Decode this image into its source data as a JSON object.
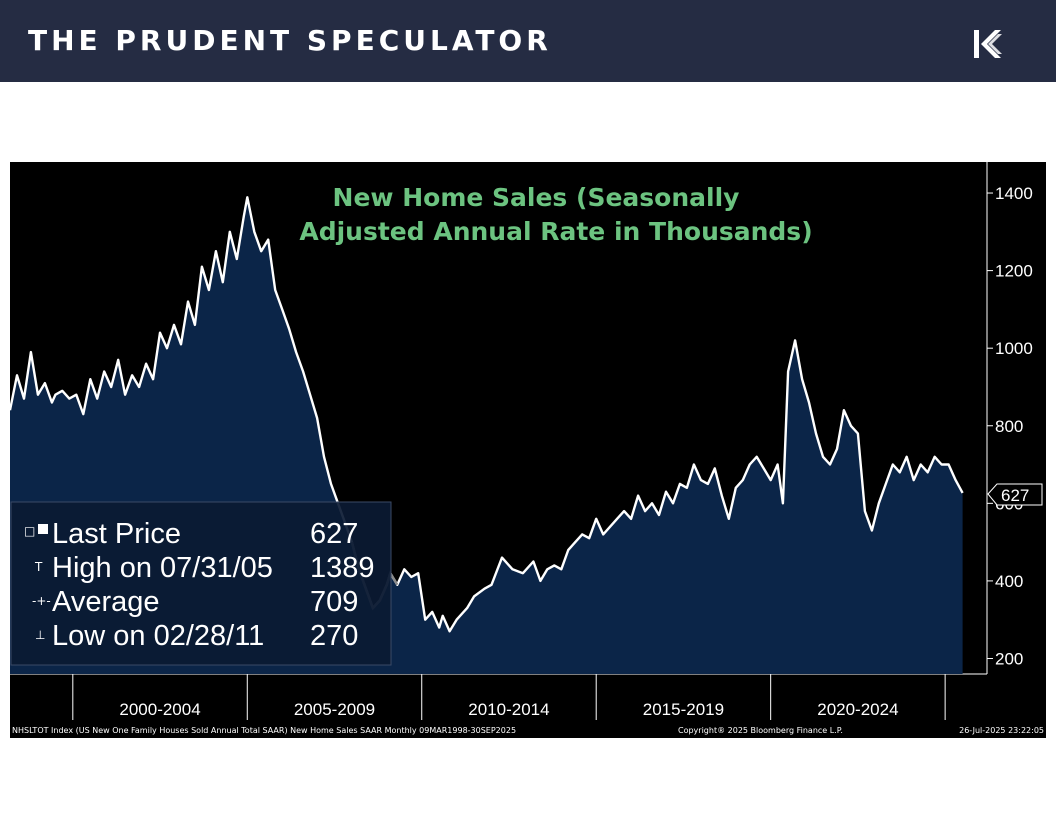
{
  "header": {
    "brand": "THE PRUDENT SPECULATOR",
    "logo_icon": "tps-k-logo-icon"
  },
  "colors": {
    "header_bg": "#252c43",
    "chart_bg": "#000000",
    "area_fill": "#0b2548",
    "line": "#ffffff",
    "line_low_segment": "#8a8a8a",
    "title": "#6cc380"
  },
  "chart_data": {
    "type": "area",
    "title_lines": [
      "New Home Sales (Seasonally",
      "Adjusted Annual Rate in Thousands)"
    ],
    "xlabel": "",
    "ylabel": "",
    "ylim": [
      160,
      1480
    ],
    "y_ticks": [
      200,
      400,
      600,
      800,
      1000,
      1200,
      1400
    ],
    "x_range": [
      1998.2,
      2026.2
    ],
    "x_period_labels": [
      "2000-2004",
      "2005-2009",
      "2010-2014",
      "2015-2019",
      "2020-2024"
    ],
    "x_boundaries": [
      2000,
      2005,
      2010,
      2015,
      2020,
      2025
    ],
    "last_value_label": "627",
    "legend": [
      {
        "label": "Last Price",
        "value": "627"
      },
      {
        "label": "High on 07/31/05",
        "value": "1389"
      },
      {
        "label": "Average",
        "value": "709"
      },
      {
        "label": "Low on 02/28/11",
        "value": "270"
      }
    ],
    "legend_placement": "bottom-left",
    "grid": false,
    "series": [
      {
        "x": [
          1998.2,
          1998.4,
          1998.6,
          1998.8,
          1999.0,
          1999.2,
          1999.4,
          1999.5,
          1999.7,
          1999.9,
          2000.1,
          2000.3,
          2000.5,
          2000.7,
          2000.9,
          2001.1,
          2001.3,
          2001.5,
          2001.7,
          2001.9,
          2002.1,
          2002.3,
          2002.5,
          2002.7,
          2002.9,
          2003.1,
          2003.3,
          2003.5,
          2003.7,
          2003.9,
          2004.1,
          2004.3,
          2004.5,
          2004.7,
          2004.9,
          2005.0,
          2005.2,
          2005.4,
          2005.6,
          2005.8,
          2006.0,
          2006.2,
          2006.4,
          2006.6,
          2006.8,
          2007.0,
          2007.2,
          2007.4,
          2007.6,
          2007.8,
          2008.0,
          2008.2,
          2008.4,
          2008.6,
          2008.8,
          2009.0,
          2009.1,
          2009.3,
          2009.5,
          2009.7,
          2009.9,
          2010.1,
          2010.3,
          2010.5,
          2010.6,
          2010.8,
          2011.0,
          2011.1,
          2011.3,
          2011.5,
          2011.8,
          2012.0,
          2012.3,
          2012.6,
          2012.9,
          2013.2,
          2013.4,
          2013.6,
          2013.8,
          2014.0,
          2014.2,
          2014.4,
          2014.6,
          2014.8,
          2015.0,
          2015.2,
          2015.4,
          2015.6,
          2015.8,
          2016.0,
          2016.2,
          2016.4,
          2016.6,
          2016.8,
          2017.0,
          2017.2,
          2017.4,
          2017.6,
          2017.8,
          2018.0,
          2018.2,
          2018.4,
          2018.6,
          2018.8,
          2019.0,
          2019.2,
          2019.4,
          2019.6,
          2019.8,
          2020.0,
          2020.2,
          2020.35,
          2020.5,
          2020.7,
          2020.9,
          2021.1,
          2021.3,
          2021.5,
          2021.7,
          2021.9,
          2022.1,
          2022.3,
          2022.5,
          2022.7,
          2022.9,
          2023.1,
          2023.3,
          2023.5,
          2023.7,
          2023.9,
          2024.1,
          2024.3,
          2024.5,
          2024.7,
          2024.9,
          2025.1,
          2025.3,
          2025.5
        ],
        "values": [
          840,
          930,
          870,
          990,
          880,
          910,
          860,
          880,
          890,
          870,
          880,
          830,
          920,
          870,
          940,
          900,
          970,
          880,
          930,
          900,
          960,
          920,
          1040,
          1000,
          1060,
          1010,
          1120,
          1060,
          1210,
          1150,
          1250,
          1170,
          1300,
          1230,
          1340,
          1389,
          1300,
          1250,
          1280,
          1150,
          1100,
          1050,
          990,
          940,
          880,
          820,
          720,
          650,
          600,
          550,
          500,
          430,
          380,
          330,
          350,
          390,
          420,
          390,
          430,
          410,
          420,
          300,
          320,
          280,
          310,
          270,
          300,
          310,
          330,
          360,
          380,
          390,
          460,
          430,
          420,
          450,
          400,
          430,
          440,
          430,
          480,
          500,
          520,
          510,
          560,
          520,
          540,
          560,
          580,
          560,
          620,
          580,
          600,
          570,
          630,
          600,
          650,
          640,
          700,
          660,
          650,
          690,
          620,
          560,
          640,
          660,
          700,
          720,
          690,
          660,
          700,
          600,
          940,
          1020,
          920,
          860,
          780,
          720,
          700,
          740,
          840,
          800,
          780,
          580,
          530,
          600,
          650,
          700,
          680,
          720,
          660,
          700,
          680,
          720,
          700,
          700,
          660,
          627
        ]
      }
    ]
  },
  "footer": {
    "left": "NHSLTOT Index (US New One Family Houses Sold Annual Total SAAR) New Home Sales SAAR  Monthly 09MAR1998-30SEP2025",
    "center": "Copyright® 2025 Bloomberg Finance L.P.",
    "right": "26-Jul-2025 23:22:05"
  }
}
